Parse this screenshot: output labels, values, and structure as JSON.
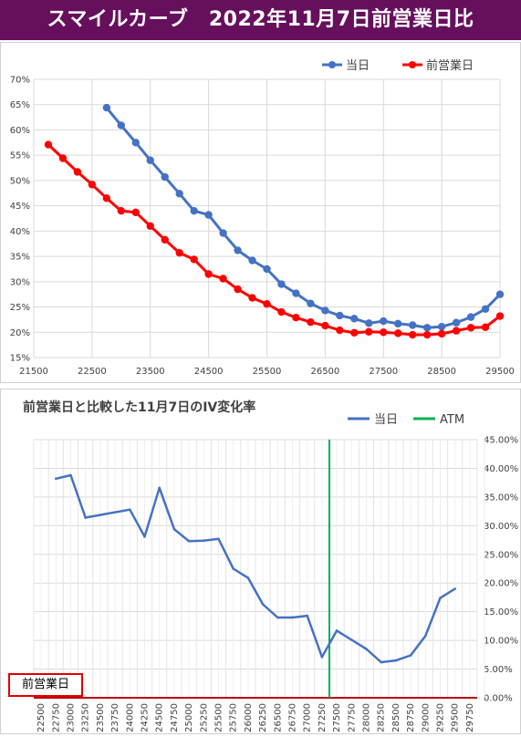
{
  "header": {
    "title": "スマイルカーブ　2022年11月7日前営業日比",
    "background_color": "#660f5d",
    "text_color": "#ffffff"
  },
  "chart_data": [
    {
      "type": "line",
      "title": "",
      "legend_position": "top-right",
      "grid": true,
      "xlim": [
        21500,
        29500
      ],
      "ylim": [
        0.15,
        0.7
      ],
      "x_ticks": [
        "21500",
        "22500",
        "23500",
        "24500",
        "25500",
        "26500",
        "27500",
        "28500",
        "29500"
      ],
      "y_ticks": [
        "15%",
        "20%",
        "25%",
        "30%",
        "35%",
        "40%",
        "45%",
        "50%",
        "55%",
        "60%",
        "65%",
        "70%"
      ],
      "series": [
        {
          "name": "当日",
          "color": "#4472c4",
          "x": [
            22750,
            23000,
            23250,
            23500,
            23750,
            24000,
            24250,
            24500,
            24750,
            25000,
            25250,
            25500,
            25750,
            26000,
            26250,
            26500,
            26750,
            27000,
            27250,
            27500,
            27750,
            28000,
            28250,
            28500,
            28750,
            29000,
            29250,
            29500
          ],
          "values": [
            0.644,
            0.609,
            0.575,
            0.54,
            0.507,
            0.474,
            0.44,
            0.432,
            0.396,
            0.362,
            0.342,
            0.325,
            0.295,
            0.277,
            0.257,
            0.243,
            0.233,
            0.227,
            0.218,
            0.222,
            0.217,
            0.214,
            0.209,
            0.211,
            0.219,
            0.23,
            0.246,
            0.275
          ]
        },
        {
          "name": "前営業日",
          "color": "#ff0000",
          "x": [
            21750,
            22000,
            22250,
            22500,
            22750,
            23000,
            23250,
            23500,
            23750,
            24000,
            24250,
            24500,
            24750,
            25000,
            25250,
            25500,
            25750,
            26000,
            26250,
            26500,
            26750,
            27000,
            27250,
            27500,
            27750,
            28000,
            28250,
            28500,
            28750,
            29000,
            29250,
            29500
          ],
          "values": [
            0.571,
            0.544,
            0.517,
            0.492,
            0.465,
            0.44,
            0.437,
            0.41,
            0.383,
            0.357,
            0.344,
            0.315,
            0.306,
            0.285,
            0.268,
            0.256,
            0.24,
            0.229,
            0.22,
            0.213,
            0.204,
            0.199,
            0.201,
            0.2,
            0.198,
            0.195,
            0.195,
            0.197,
            0.203,
            0.209,
            0.21,
            0.232
          ]
        }
      ]
    },
    {
      "type": "line",
      "title": "前営業日と比較した11月7日のIV変化率",
      "legend_position": "top-right",
      "grid": true,
      "ylim": [
        0,
        0.45
      ],
      "y_ticks": [
        "0.00%",
        "5.00%",
        "10.00%",
        "15.00%",
        "20.00%",
        "25.00%",
        "30.00%",
        "35.00%",
        "40.00%",
        "45.00%"
      ],
      "categories": [
        "22500",
        "22750",
        "23000",
        "23250",
        "23500",
        "23750",
        "24000",
        "24250",
        "24500",
        "24750",
        "25000",
        "25250",
        "25500",
        "25750",
        "26000",
        "26250",
        "26500",
        "26750",
        "27000",
        "27250",
        "27500",
        "27750",
        "28000",
        "28250",
        "28500",
        "28750",
        "29000",
        "29250",
        "29500",
        "29750"
      ],
      "atm_strike": "27375",
      "zero_line_label": "前営業日",
      "series": [
        {
          "name": "当日",
          "color": "#4472c4",
          "x": [
            22750,
            23000,
            23250,
            24000,
            24250,
            24500,
            24750,
            25000,
            25250,
            25500,
            25750,
            26000,
            26250,
            26500,
            26750,
            27000,
            27250,
            27500,
            27750,
            28000,
            28250,
            28500,
            28750,
            29000,
            29250,
            29500
          ],
          "values": [
            0.382,
            0.388,
            0.314,
            0.328,
            0.281,
            0.366,
            0.294,
            0.273,
            0.274,
            0.277,
            0.225,
            0.209,
            0.163,
            0.14,
            0.14,
            0.143,
            0.071,
            0.117,
            0.101,
            0.085,
            0.062,
            0.065,
            0.074,
            0.108,
            0.174,
            0.19
          ]
        },
        {
          "name": "ATM",
          "color": "#00b050"
        }
      ]
    }
  ]
}
